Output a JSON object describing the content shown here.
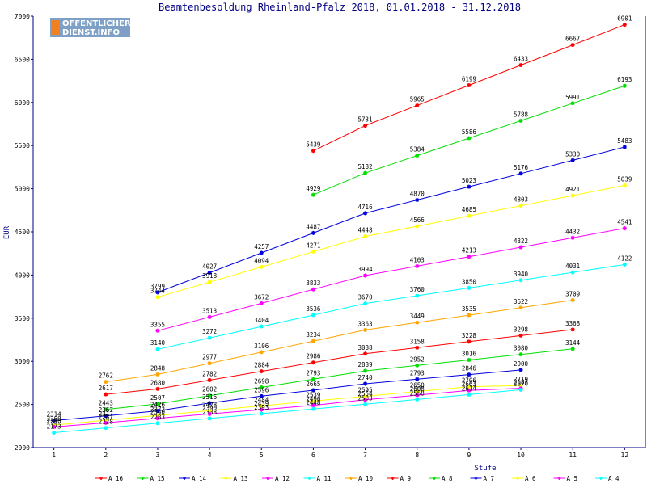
{
  "chart_data": {
    "type": "line",
    "title": "Beamtenbesoldung Rheinland-Pfalz 2018, 01.01.2018 - 31.12.2018",
    "xlabel": "Stufe",
    "ylabel": "EUR",
    "x": [
      1,
      2,
      3,
      4,
      5,
      6,
      7,
      8,
      9,
      10,
      11,
      12
    ],
    "xlim": [
      0.6,
      12.4
    ],
    "ylim": [
      2000,
      7000
    ],
    "yticks": [
      2000,
      2500,
      3000,
      3500,
      4000,
      4500,
      5000,
      5500,
      6000,
      6500,
      7000
    ],
    "grid": false,
    "legend_position": "bottom",
    "logo": {
      "line1": "OFFENTLICHER",
      "line2": "DIENST.INFO"
    },
    "series": [
      {
        "name": "A_16",
        "color": "#ff0000",
        "values": [
          null,
          null,
          null,
          null,
          null,
          5439,
          5731,
          5965,
          6199,
          6433,
          6667,
          6901
        ]
      },
      {
        "name": "A_15",
        "color": "#00e000",
        "values": [
          null,
          null,
          null,
          null,
          null,
          4929,
          5182,
          5384,
          5586,
          5788,
          5991,
          6193
        ]
      },
      {
        "name": "A_14",
        "color": "#0000dd",
        "values": [
          null,
          null,
          3799,
          4027,
          4257,
          4487,
          4716,
          4870,
          5023,
          5176,
          5330,
          5483
        ]
      },
      {
        "name": "A_13",
        "color": "#ffff00",
        "values": [
          null,
          null,
          3744,
          3918,
          4094,
          4271,
          4448,
          4566,
          4685,
          4803,
          4921,
          5039
        ]
      },
      {
        "name": "A_12",
        "color": "#ff00ff",
        "values": [
          null,
          null,
          3355,
          3513,
          3672,
          3833,
          3994,
          4103,
          4213,
          4322,
          4432,
          4541
        ]
      },
      {
        "name": "A_11",
        "color": "#00ffff",
        "values": [
          null,
          null,
          3140,
          3272,
          3404,
          3536,
          3670,
          3760,
          3850,
          3940,
          4031,
          4122
        ]
      },
      {
        "name": "A_10",
        "color": "#ffa500",
        "values": [
          null,
          2762,
          2848,
          2977,
          3106,
          3234,
          3363,
          3449,
          3535,
          3622,
          3709,
          null
        ]
      },
      {
        "name": "A_9",
        "color": "#ff0000",
        "values": [
          null,
          2617,
          2680,
          2782,
          2884,
          2986,
          3088,
          3158,
          3228,
          3298,
          3368,
          null
        ]
      },
      {
        "name": "A_8",
        "color": "#00e000",
        "values": [
          null,
          2443,
          2507,
          2602,
          2698,
          2793,
          2889,
          2952,
          3016,
          3080,
          3144,
          null
        ]
      },
      {
        "name": "A_7",
        "color": "#0000dd",
        "values": [
          2314,
          2367,
          2426,
          2516,
          2596,
          2665,
          2740,
          2793,
          2846,
          2900,
          null,
          null
        ]
      },
      {
        "name": "A_6",
        "color": "#ffff00",
        "values": [
          2260,
          2317,
          2372,
          2428,
          2484,
          2539,
          2595,
          2650,
          2706,
          2719,
          null,
          null
        ]
      },
      {
        "name": "A_5",
        "color": "#ff00ff",
        "values": [
          2240,
          2287,
          2340,
          2390,
          2439,
          2490,
          2554,
          2608,
          2663,
          2687,
          null,
          null
        ]
      },
      {
        "name": "A_4",
        "color": "#00ffff",
        "values": [
          2173,
          2228,
          2283,
          2338,
          2393,
          2448,
          2503,
          2558,
          2614,
          2670,
          null,
          null
        ]
      }
    ]
  }
}
